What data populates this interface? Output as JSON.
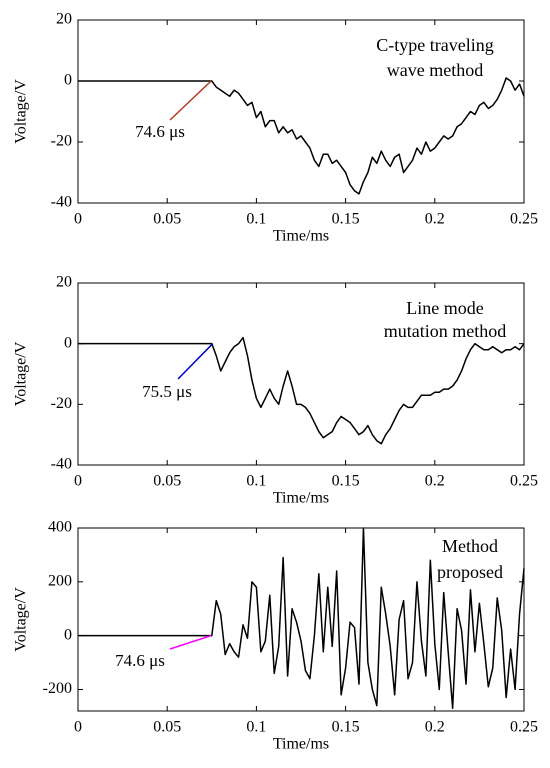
{
  "chart_data": [
    {
      "type": "line",
      "color": "#000000",
      "x": [
        0,
        0.075,
        0.0775,
        0.08,
        0.0825,
        0.085,
        0.0875,
        0.09,
        0.0925,
        0.095,
        0.0975,
        0.1,
        0.1025,
        0.105,
        0.1075,
        0.11,
        0.1125,
        0.115,
        0.1175,
        0.12,
        0.1225,
        0.125,
        0.1275,
        0.13,
        0.1325,
        0.135,
        0.1375,
        0.14,
        0.1425,
        0.145,
        0.1475,
        0.15,
        0.1525,
        0.155,
        0.1575,
        0.16,
        0.1625,
        0.165,
        0.1675,
        0.17,
        0.1725,
        0.175,
        0.1775,
        0.18,
        0.1825,
        0.185,
        0.1875,
        0.19,
        0.1925,
        0.195,
        0.1975,
        0.2,
        0.2025,
        0.205,
        0.2075,
        0.21,
        0.2125,
        0.215,
        0.2175,
        0.22,
        0.2225,
        0.225,
        0.2275,
        0.23,
        0.2325,
        0.235,
        0.2375,
        0.24,
        0.2425,
        0.245,
        0.2475,
        0.25
      ],
      "values": [
        0,
        0,
        -2,
        -3,
        -4,
        -5,
        -3,
        -4,
        -6,
        -8,
        -7,
        -12,
        -10,
        -15,
        -13,
        -13,
        -17,
        -15,
        -17,
        -16,
        -19,
        -18,
        -20,
        -22,
        -26,
        -28,
        -24,
        -24,
        -27,
        -26,
        -28,
        -30,
        -34,
        -36,
        -37,
        -33,
        -30,
        -25,
        -27,
        -23,
        -26,
        -28,
        -25,
        -24,
        -30,
        -28,
        -26,
        -22,
        -24,
        -20,
        -23,
        -22,
        -20,
        -18,
        -19,
        -18,
        -15,
        -14,
        -12,
        -10,
        -11,
        -8,
        -7,
        -9,
        -8,
        -6,
        -3,
        1,
        0,
        -3,
        -1,
        -5
      ],
      "xlim": [
        0,
        0.25
      ],
      "xticks": [
        0,
        0.05,
        0.1,
        0.15,
        0.2,
        0.25
      ],
      "ylim": [
        -40,
        20
      ],
      "yticks": [
        -40,
        -20,
        0,
        20
      ],
      "xlabel": "Time/ms",
      "ylabel": "Voltage/V",
      "method": {
        "lines": [
          "C-type traveling",
          "wave method"
        ],
        "color": "#c0392b"
      },
      "onset": {
        "text": "74.6 μs",
        "x": 0.0746,
        "y": 0,
        "color": "#b5371f"
      }
    },
    {
      "type": "line",
      "color": "#000000",
      "x": [
        0,
        0.075,
        0.0775,
        0.08,
        0.0825,
        0.085,
        0.0875,
        0.09,
        0.0925,
        0.095,
        0.0975,
        0.1,
        0.1025,
        0.105,
        0.1075,
        0.11,
        0.1125,
        0.115,
        0.1175,
        0.12,
        0.1225,
        0.125,
        0.1275,
        0.13,
        0.1325,
        0.135,
        0.1375,
        0.14,
        0.1425,
        0.145,
        0.1475,
        0.15,
        0.1525,
        0.155,
        0.1575,
        0.16,
        0.1625,
        0.165,
        0.1675,
        0.17,
        0.1725,
        0.175,
        0.1775,
        0.18,
        0.1825,
        0.185,
        0.1875,
        0.19,
        0.1925,
        0.195,
        0.1975,
        0.2,
        0.2025,
        0.205,
        0.2075,
        0.21,
        0.2125,
        0.215,
        0.2175,
        0.22,
        0.2225,
        0.225,
        0.2275,
        0.23,
        0.2325,
        0.235,
        0.2375,
        0.24,
        0.2425,
        0.245,
        0.2475,
        0.25
      ],
      "values": [
        0,
        0,
        -4,
        -9,
        -6,
        -3,
        -1,
        0,
        2,
        -4,
        -12,
        -18,
        -21,
        -18,
        -15,
        -18,
        -20,
        -14,
        -9,
        -14,
        -20,
        -20,
        -21,
        -23,
        -26,
        -29,
        -31,
        -30,
        -29,
        -26,
        -24,
        -25,
        -26,
        -28,
        -30,
        -29,
        -27,
        -30,
        -32,
        -33,
        -30,
        -28,
        -25,
        -22,
        -20,
        -21,
        -21,
        -19,
        -17,
        -17,
        -17,
        -16,
        -16,
        -15,
        -15,
        -14,
        -12,
        -9,
        -5,
        -2,
        0,
        -1,
        -2,
        -2,
        -1,
        -2,
        -3,
        -2,
        -2,
        -1,
        -2,
        0
      ],
      "xlim": [
        0,
        0.25
      ],
      "xticks": [
        0,
        0.05,
        0.1,
        0.15,
        0.2,
        0.25
      ],
      "ylim": [
        -40,
        20
      ],
      "yticks": [
        -40,
        -20,
        0,
        20
      ],
      "xlabel": "Time/ms",
      "ylabel": "Voltage/V",
      "method": {
        "lines": [
          "Line mode",
          "mutation method"
        ],
        "color": "#0000cc"
      },
      "onset": {
        "text": "75.5 μs",
        "x": 0.0755,
        "y": 0,
        "color": "#0000cc"
      }
    },
    {
      "type": "line",
      "color": "#000000",
      "x": [
        0,
        0.075,
        0.0775,
        0.08,
        0.0825,
        0.085,
        0.0875,
        0.09,
        0.0925,
        0.095,
        0.0975,
        0.1,
        0.1025,
        0.105,
        0.1075,
        0.11,
        0.1125,
        0.115,
        0.1175,
        0.12,
        0.1225,
        0.125,
        0.1275,
        0.13,
        0.1325,
        0.135,
        0.1375,
        0.14,
        0.1425,
        0.145,
        0.1475,
        0.15,
        0.1525,
        0.155,
        0.1575,
        0.16,
        0.1625,
        0.165,
        0.1675,
        0.17,
        0.1725,
        0.175,
        0.1775,
        0.18,
        0.1825,
        0.185,
        0.1875,
        0.19,
        0.1925,
        0.195,
        0.1975,
        0.2,
        0.2025,
        0.205,
        0.2075,
        0.21,
        0.2125,
        0.215,
        0.2175,
        0.22,
        0.2225,
        0.225,
        0.2275,
        0.23,
        0.2325,
        0.235,
        0.2375,
        0.24,
        0.2425,
        0.245,
        0.2475,
        0.25
      ],
      "values": [
        0,
        0,
        130,
        80,
        -70,
        -30,
        -60,
        -80,
        40,
        -10,
        200,
        180,
        -60,
        -20,
        150,
        -140,
        -40,
        290,
        -150,
        100,
        50,
        -20,
        -130,
        -160,
        0,
        230,
        -60,
        180,
        -40,
        240,
        -220,
        -120,
        50,
        30,
        -180,
        400,
        -100,
        -200,
        -260,
        180,
        80,
        -40,
        -220,
        60,
        130,
        -160,
        -100,
        200,
        -20,
        -150,
        280,
        -30,
        -200,
        160,
        -60,
        -270,
        100,
        20,
        -180,
        170,
        -60,
        120,
        -30,
        -190,
        -120,
        140,
        20,
        -230,
        -50,
        -200,
        80,
        250
      ],
      "xlim": [
        0,
        0.25
      ],
      "xticks": [
        0,
        0.05,
        0.1,
        0.15,
        0.2,
        0.25
      ],
      "ylim": [
        -280,
        400
      ],
      "yticks": [
        -200,
        0,
        200,
        400
      ],
      "xlabel": "Time/ms",
      "ylabel": "Voltage/V",
      "method": {
        "lines": [
          "Method",
          "proposed"
        ],
        "color": "#ff00ff"
      },
      "onset": {
        "text": "74.6 μs",
        "x": 0.0746,
        "y": 0,
        "color": "#ff00ff"
      }
    }
  ]
}
